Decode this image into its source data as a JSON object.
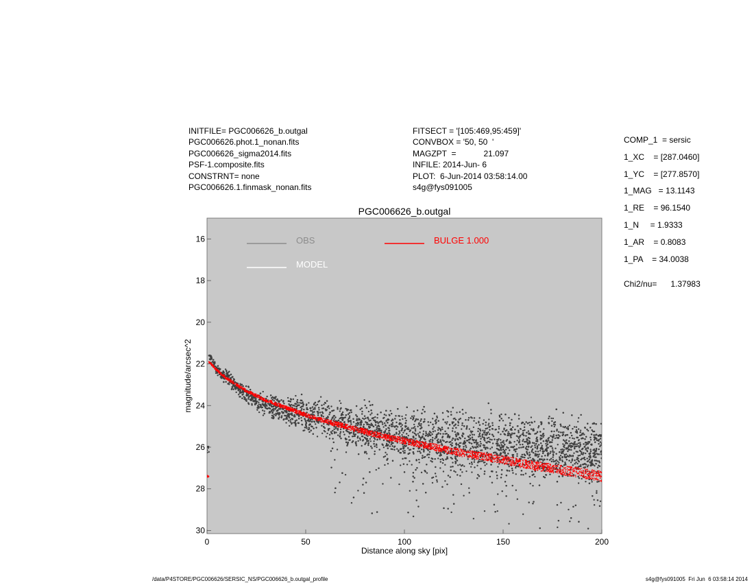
{
  "header": {
    "left": [
      "INITFILE= PGC006626_b.outgal",
      "PGC006626.phot.1_nonan.fits",
      "PGC006626_sigma2014.fits",
      "PSF-1.composite.fits",
      "CONSTRNT= none",
      "PGC006626.1.finmask_nonan.fits"
    ],
    "middle": [
      "FITSECT = '[105:469,95:459]'",
      "CONVBOX = '50, 50  '",
      "MAGZPT  =            21.097",
      "INFILE: 2014-Jun- 6",
      "PLOT:  6-Jun-2014 03:58:14.00",
      "s4g@fys091005"
    ]
  },
  "params": [
    "COMP_1  = sersic",
    "1_XC    = [287.0460]",
    "1_YC    = [277.8570]",
    "1_MAG   = 13.1143",
    "1_RE    = 96.1540",
    "1_N     = 1.9333",
    "1_AR    = 0.8083",
    "1_PA    = 34.0038"
  ],
  "chi2": "Chi2/nu=      1.37983",
  "footer": {
    "left": "/data/P4STORE/PGC006626/SERSIC_NS/PGC006626_b.outgal_profile",
    "right": "s4g@fys091005  Fri Jun  6 03:58:14 2014"
  },
  "chart_data": {
    "type": "scatter",
    "title": "PGC006626_b.outgal",
    "xlabel": "Distance along sky [pix]",
    "ylabel": "magnitude/arcsec^2",
    "xlim": [
      0,
      200
    ],
    "ylim": [
      30,
      15
    ],
    "y_inverted": true,
    "x_ticks": [
      "0",
      "50",
      "100",
      "150",
      "200"
    ],
    "y_ticks": [
      "16",
      "18",
      "20",
      "22",
      "24",
      "26",
      "28",
      "30"
    ],
    "background_color": "#c8c8c8",
    "legend": [
      {
        "label": "OBS",
        "line_color": "#8c8c8c",
        "text_color": "#8c8c8c"
      },
      {
        "label": "MODEL",
        "line_color": "#ffffff",
        "text_color": "#ffffff"
      },
      {
        "label": "BULGE  1.000",
        "line_color": "#ff0000",
        "text_color": "#ff0000"
      }
    ],
    "series": [
      {
        "name": "OBS",
        "color": "#404040",
        "marker": "dot",
        "points": [
          [
            1,
            21.6
          ],
          [
            5,
            22.3
          ],
          [
            10,
            22.6
          ],
          [
            15,
            23.1
          ],
          [
            20,
            23.5
          ],
          [
            25,
            23.8
          ],
          [
            30,
            24.0
          ],
          [
            35,
            24.1
          ],
          [
            40,
            24.3
          ],
          [
            45,
            24.3
          ],
          [
            50,
            24.5
          ],
          [
            55,
            24.6
          ],
          [
            60,
            24.7
          ],
          [
            65,
            24.8
          ],
          [
            70,
            24.9
          ],
          [
            75,
            25.0
          ],
          [
            80,
            25.1
          ],
          [
            85,
            25.2
          ],
          [
            90,
            25.3
          ],
          [
            95,
            25.4
          ],
          [
            100,
            25.5
          ],
          [
            110,
            25.6
          ],
          [
            120,
            25.7
          ],
          [
            130,
            25.8
          ],
          [
            140,
            25.9
          ],
          [
            150,
            26.0
          ],
          [
            160,
            26.0
          ],
          [
            170,
            26.1
          ],
          [
            180,
            26.1
          ],
          [
            190,
            26.1
          ],
          [
            200,
            26.2
          ]
        ]
      },
      {
        "name": "BULGE  1.000",
        "color": "#ff0000",
        "marker": "dot",
        "points": [
          [
            1,
            21.9
          ],
          [
            5,
            22.3
          ],
          [
            10,
            22.7
          ],
          [
            20,
            23.3
          ],
          [
            30,
            23.75
          ],
          [
            40,
            24.1
          ],
          [
            50,
            24.45
          ],
          [
            60,
            24.75
          ],
          [
            70,
            25.0
          ],
          [
            80,
            25.25
          ],
          [
            90,
            25.5
          ],
          [
            100,
            25.7
          ],
          [
            110,
            25.9
          ],
          [
            120,
            26.1
          ],
          [
            130,
            26.3
          ],
          [
            140,
            26.45
          ],
          [
            150,
            26.6
          ],
          [
            160,
            26.8
          ],
          [
            170,
            26.95
          ],
          [
            180,
            27.1
          ],
          [
            190,
            27.25
          ],
          [
            200,
            27.4
          ]
        ]
      }
    ]
  }
}
